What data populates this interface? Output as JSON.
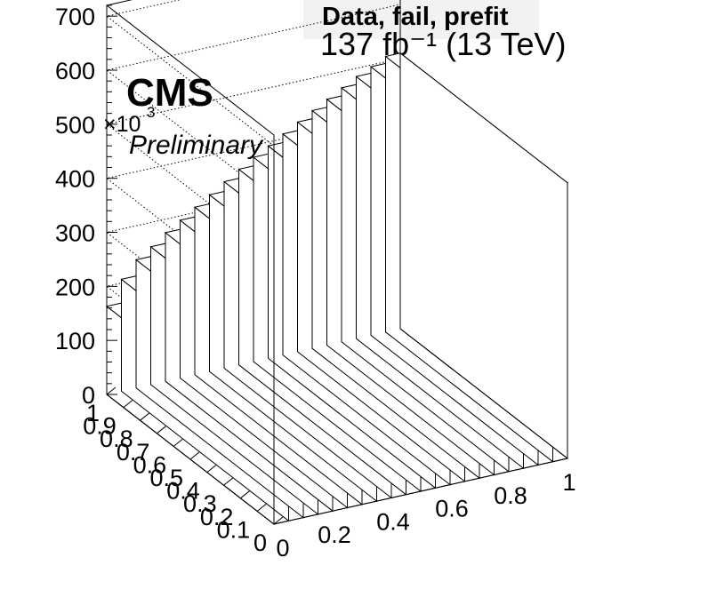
{
  "title": "Data, fail, prefit",
  "cms_label": "CMS",
  "preliminary_label": "Preliminary",
  "lumi_label": "137 fb⁻¹ (13 TeV)",
  "z_axis_multiplier": "×10",
  "z_axis_multiplier_exp": "3",
  "chart_data": {
    "type": "lego",
    "title": "Data, fail, prefit",
    "x_ticks": [
      "0",
      "0.2",
      "0.4",
      "0.6",
      "0.8",
      "1"
    ],
    "y_ticks": [
      "0",
      "0.1",
      "0.2",
      "0.3",
      "0.4",
      "0.5",
      "0.6",
      "0.7",
      "0.8",
      "0.9",
      "1"
    ],
    "z_ticks": [
      "0",
      "100",
      "200",
      "300",
      "400",
      "500",
      "600",
      "700"
    ],
    "x_range": [
      0,
      1
    ],
    "y_range": [
      0,
      1
    ],
    "z_range": [
      0,
      720000
    ],
    "z_unit_multiplier": 1000,
    "x_bins": 20,
    "y_bins": 1,
    "values": [
      163000,
      207000,
      237000,
      255000,
      275000,
      292000,
      310000,
      327000,
      345000,
      362000,
      378000,
      393000,
      409000,
      425000,
      440000,
      455000,
      470000,
      485000,
      497000,
      510000
    ],
    "grid": true
  }
}
